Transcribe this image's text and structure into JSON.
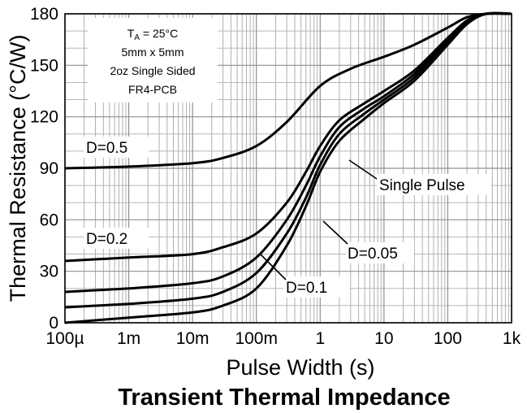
{
  "chart_data": {
    "type": "line",
    "title": "Transient Thermal Impedance",
    "xlabel": "Pulse Width (s)",
    "ylabel": "Thermal Resistance (°C/W)",
    "x_scale": "log",
    "xlim": [
      0.0001,
      1000
    ],
    "ylim": [
      0,
      180
    ],
    "x_ticks": [
      0.0001,
      0.001,
      0.01,
      0.1,
      1,
      10,
      100,
      1000
    ],
    "x_tick_labels": [
      "100µ",
      "1m",
      "10m",
      "100m",
      "1",
      "10",
      "100",
      "1k"
    ],
    "y_ticks": [
      0,
      30,
      60,
      90,
      120,
      150,
      180
    ],
    "y_tick_labels": [
      "0",
      "30",
      "60",
      "90",
      "120",
      "150",
      "180"
    ],
    "grid": true,
    "conditions": [
      "T_A = 25°C",
      "5mm x 5mm",
      "2oz Single Sided",
      "FR4-PCB"
    ],
    "condition_parts": {
      "t": "T",
      "sub": "A",
      "rest": " = 25°C"
    },
    "series": [
      {
        "name": "D=0.5",
        "x": [
          0.0001,
          0.001,
          0.01,
          0.03,
          0.1,
          0.3,
          1,
          3,
          10,
          30,
          100,
          200,
          400,
          1000
        ],
        "y": [
          90,
          91,
          93,
          96,
          103,
          117,
          138,
          148,
          155,
          162,
          172,
          178,
          180,
          180
        ]
      },
      {
        "name": "D=0.2",
        "x": [
          0.0001,
          0.001,
          0.01,
          0.03,
          0.1,
          0.3,
          0.6,
          1,
          2,
          5,
          10,
          30,
          100,
          200,
          400,
          1000
        ],
        "y": [
          36,
          38,
          40,
          44,
          52,
          70,
          88,
          103,
          118,
          128,
          135,
          147,
          166,
          176,
          180,
          180
        ]
      },
      {
        "name": "D=0.1",
        "x": [
          0.0001,
          0.001,
          0.01,
          0.03,
          0.1,
          0.3,
          0.6,
          1,
          2,
          5,
          10,
          30,
          100,
          200,
          400,
          1000
        ],
        "y": [
          18,
          20,
          23,
          27,
          38,
          60,
          80,
          97,
          114,
          125,
          132,
          145,
          165,
          176,
          180,
          180
        ]
      },
      {
        "name": "D=0.05",
        "x": [
          0.0001,
          0.001,
          0.01,
          0.03,
          0.1,
          0.3,
          0.6,
          1,
          2,
          5,
          10,
          30,
          100,
          200,
          400,
          1000
        ],
        "y": [
          9,
          11,
          14,
          18,
          29,
          52,
          73,
          92,
          110,
          122,
          130,
          143,
          164,
          175,
          180,
          180
        ]
      },
      {
        "name": "Single Pulse",
        "x": [
          0.0001,
          0.001,
          0.01,
          0.03,
          0.1,
          0.3,
          0.6,
          1,
          2,
          5,
          10,
          30,
          100,
          200,
          400,
          1000
        ],
        "y": [
          0,
          3,
          6,
          10,
          20,
          45,
          68,
          88,
          106,
          119,
          128,
          141,
          162,
          174,
          180,
          180
        ]
      }
    ]
  }
}
